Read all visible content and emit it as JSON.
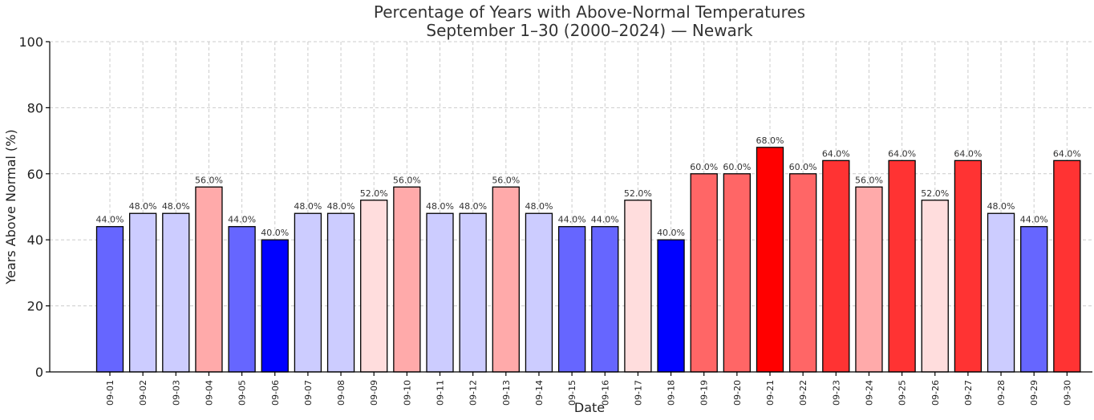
{
  "chart_data": {
    "type": "bar",
    "title": "Percentage of Years with Above-Normal Temperatures",
    "subtitle": "September 1–30 (2000–2024) — Newark",
    "xlabel": "Date",
    "ylabel": "Years Above Normal (%)",
    "ylim": [
      0,
      100
    ],
    "yticks": [
      0,
      20,
      40,
      60,
      80,
      100
    ],
    "grid": true,
    "categories": [
      "09-01",
      "09-02",
      "09-03",
      "09-04",
      "09-05",
      "09-06",
      "09-07",
      "09-08",
      "09-09",
      "09-10",
      "09-11",
      "09-12",
      "09-13",
      "09-14",
      "09-15",
      "09-16",
      "09-17",
      "09-18",
      "09-19",
      "09-20",
      "09-21",
      "09-22",
      "09-23",
      "09-24",
      "09-25",
      "09-26",
      "09-27",
      "09-28",
      "09-29",
      "09-30"
    ],
    "values": [
      44,
      48,
      48,
      56,
      44,
      40,
      48,
      48,
      52,
      56,
      48,
      48,
      56,
      48,
      44,
      44,
      52,
      40,
      60,
      60,
      68,
      60,
      64,
      56,
      64,
      52,
      64,
      48,
      44,
      64
    ],
    "data_labels": [
      "44.0%",
      "48.0%",
      "48.0%",
      "56.0%",
      "44.0%",
      "40.0%",
      "48.0%",
      "48.0%",
      "52.0%",
      "56.0%",
      "48.0%",
      "48.0%",
      "56.0%",
      "48.0%",
      "44.0%",
      "44.0%",
      "52.0%",
      "40.0%",
      "60.0%",
      "60.0%",
      "68.0%",
      "60.0%",
      "64.0%",
      "56.0%",
      "64.0%",
      "52.0%",
      "64.0%",
      "48.0%",
      "44.0%",
      "64.0%"
    ],
    "bar_colors": {
      "40": "#0000ff",
      "44": "#6666ff",
      "48": "#ccccff",
      "52": "#ffdddd",
      "56": "#ffaaaa",
      "60": "#ff6666",
      "64": "#ff3333",
      "68": "#ff0000"
    }
  }
}
